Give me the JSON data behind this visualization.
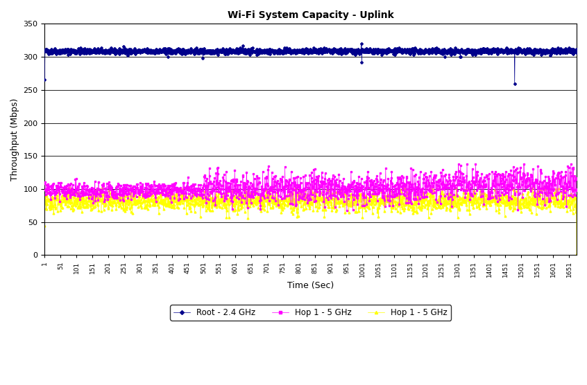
{
  "title": "Wi-Fi System Capacity - Uplink",
  "xlabel": "Time (Sec)",
  "ylabel": "Throughput (Mbps)",
  "xlim": [
    1,
    1675
  ],
  "ylim": [
    0,
    350
  ],
  "yticks": [
    0,
    50,
    100,
    150,
    200,
    250,
    300,
    350
  ],
  "xtick_start": 1,
  "xtick_step": 50,
  "xtick_end": 1651,
  "series": [
    {
      "label": "Root - 2.4 GHz",
      "color": "#00008B",
      "base_mean": 308.5,
      "base_std": 2.0,
      "marker": "D",
      "markersize": 2,
      "linewidth": 0.5
    },
    {
      "label": "Hop 1 - 5 GHz",
      "color": "#FF00FF",
      "base_mean": 100,
      "base_std": 10,
      "marker": "s",
      "markersize": 2,
      "linewidth": 0.5
    },
    {
      "label": "Hop 1 - 5 GHz",
      "color": "#FFFF00",
      "base_mean": 82,
      "base_std": 8,
      "marker": "^",
      "markersize": 2,
      "linewidth": 0.5
    }
  ],
  "legend_loc": "lower center",
  "legend_ncol": 3,
  "background_color": "#FFFFFF",
  "grid_color": "#000000",
  "grid_linewidth": 0.6,
  "seed": 42
}
